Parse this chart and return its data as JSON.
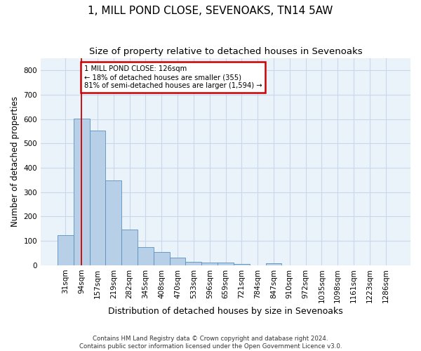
{
  "title": "1, MILL POND CLOSE, SEVENOAKS, TN14 5AW",
  "subtitle": "Size of property relative to detached houses in Sevenoaks",
  "xlabel": "Distribution of detached houses by size in Sevenoaks",
  "ylabel": "Number of detached properties",
  "categories": [
    "31sqm",
    "94sqm",
    "157sqm",
    "219sqm",
    "282sqm",
    "345sqm",
    "408sqm",
    "470sqm",
    "533sqm",
    "596sqm",
    "659sqm",
    "721sqm",
    "784sqm",
    "847sqm",
    "910sqm",
    "972sqm",
    "1035sqm",
    "1098sqm",
    "1161sqm",
    "1223sqm",
    "1286sqm"
  ],
  "values": [
    123,
    603,
    553,
    347,
    147,
    75,
    55,
    32,
    14,
    12,
    12,
    6,
    0,
    8,
    0,
    0,
    0,
    0,
    0,
    0,
    0
  ],
  "bar_color": "#b8cfe8",
  "bar_edgecolor": "#5a8fc0",
  "grid_color": "#c8d8ea",
  "background_color": "#ffffff",
  "ax_background": "#eaf2fa",
  "annotation_line1": "1 MILL POND CLOSE: 126sqm",
  "annotation_line2": "← 18% of detached houses are smaller (355)",
  "annotation_line3": "81% of semi-detached houses are larger (1,594) →",
  "annotation_box_color": "#cc0000",
  "vline_color": "#cc0000",
  "ylim": [
    0,
    850
  ],
  "yticks": [
    0,
    100,
    200,
    300,
    400,
    500,
    600,
    700,
    800
  ],
  "footnote1": "Contains HM Land Registry data © Crown copyright and database right 2024.",
  "footnote2": "Contains public sector information licensed under the Open Government Licence v3.0.",
  "title_fontsize": 11,
  "subtitle_fontsize": 9.5,
  "tick_fontsize": 7.5,
  "ylabel_fontsize": 8.5,
  "xlabel_fontsize": 9
}
